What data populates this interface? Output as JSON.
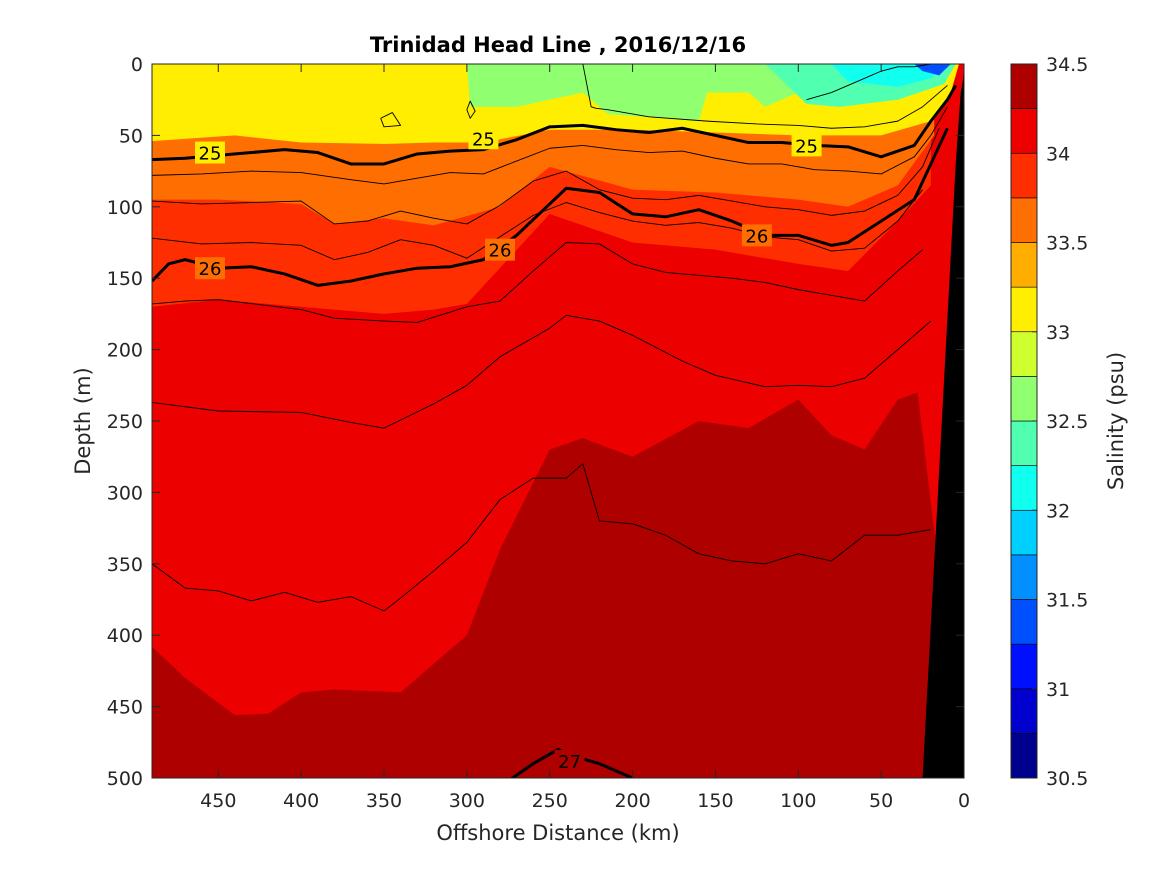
{
  "chart_data": {
    "type": "heatmap",
    "title": "Trinidad Head Line , 2016/12/16",
    "xlabel": "Offshore Distance (km)",
    "ylabel": "Depth (m)",
    "colorbar_label": "Salinity (psu)",
    "xlim": [
      490,
      0
    ],
    "ylim": [
      0,
      500
    ],
    "x_reversed": true,
    "y_reversed": true,
    "x_ticks": [
      450,
      400,
      350,
      300,
      250,
      200,
      150,
      100,
      50,
      0
    ],
    "y_ticks": [
      0,
      50,
      100,
      150,
      200,
      250,
      300,
      350,
      400,
      450,
      500
    ],
    "colorbar": {
      "range": [
        30.5,
        34.5
      ],
      "ticks": [
        30.5,
        31,
        31.5,
        32,
        32.5,
        33,
        33.5,
        34,
        34.5
      ],
      "levels": [
        30.5,
        30.75,
        31,
        31.25,
        31.5,
        31.75,
        32,
        32.25,
        32.5,
        32.75,
        33,
        33.25,
        33.5,
        33.75,
        34,
        34.25,
        34.5
      ],
      "colors": [
        "#00008f",
        "#0000cf",
        "#0010ff",
        "#0050ff",
        "#0090ff",
        "#00d0ff",
        "#10ffef",
        "#50ffaf",
        "#90ff70",
        "#d0ff30",
        "#ffee00",
        "#ffae00",
        "#ff6e00",
        "#ff2e00",
        "#ed0000",
        "#af0000"
      ]
    },
    "salinity_bands": [
      {
        "value": 32.0,
        "depth": [
          [
            10,
            0
          ],
          [
            15,
            5
          ],
          [
            25,
            8
          ],
          [
            30,
            0
          ]
        ]
      },
      {
        "value": 32.5,
        "depth": [
          [
            60,
            0
          ],
          [
            60,
            15
          ],
          [
            80,
            30
          ],
          [
            100,
            20
          ],
          [
            120,
            30
          ],
          [
            130,
            20
          ],
          [
            180,
            20
          ],
          [
            190,
            0
          ]
        ]
      },
      {
        "value": 33.0,
        "depth": [
          [
            490,
            54
          ],
          [
            440,
            50
          ],
          [
            400,
            55
          ],
          [
            350,
            56
          ],
          [
            320,
            55
          ],
          [
            290,
            55
          ],
          [
            250,
            46
          ],
          [
            200,
            46
          ],
          [
            150,
            48
          ],
          [
            100,
            50
          ],
          [
            50,
            50
          ],
          [
            20,
            40
          ],
          [
            8,
            20
          ],
          [
            3,
            0
          ]
        ]
      },
      {
        "value": 33.5,
        "depth": [
          [
            490,
            95
          ],
          [
            450,
            95
          ],
          [
            400,
            98
          ],
          [
            380,
            112
          ],
          [
            350,
            108
          ],
          [
            320,
            113
          ],
          [
            280,
            100
          ],
          [
            250,
            72
          ],
          [
            200,
            88
          ],
          [
            150,
            90
          ],
          [
            100,
            95
          ],
          [
            70,
            100
          ],
          [
            40,
            85
          ],
          [
            18,
            50
          ]
        ]
      },
      {
        "value": 34.0,
        "depth": [
          [
            490,
            170
          ],
          [
            450,
            165
          ],
          [
            400,
            170
          ],
          [
            350,
            175
          ],
          [
            320,
            172
          ],
          [
            300,
            168
          ],
          [
            250,
            105
          ],
          [
            200,
            125
          ],
          [
            150,
            130
          ],
          [
            100,
            140
          ],
          [
            70,
            145
          ],
          [
            40,
            110
          ],
          [
            20,
            85
          ]
        ]
      },
      {
        "value": 34.25,
        "depth": [
          [
            490,
            408
          ],
          [
            470,
            430
          ],
          [
            440,
            456
          ],
          [
            420,
            455
          ],
          [
            400,
            440
          ],
          [
            380,
            438
          ],
          [
            340,
            440
          ],
          [
            300,
            400
          ],
          [
            280,
            340
          ],
          [
            250,
            270
          ],
          [
            230,
            262
          ],
          [
            200,
            275
          ],
          [
            160,
            250
          ],
          [
            130,
            255
          ],
          [
            100,
            235
          ],
          [
            80,
            260
          ],
          [
            60,
            270
          ],
          [
            40,
            235
          ],
          [
            28,
            230
          ]
        ]
      }
    ],
    "sigma_t_contours": [
      {
        "label": "25",
        "x": [
          490,
          470,
          450,
          430,
          410,
          390,
          370,
          350,
          330,
          310,
          290,
          270,
          250,
          230,
          210,
          190,
          170,
          150,
          130,
          110,
          90,
          70,
          50,
          30,
          20,
          10,
          5
        ],
        "depth": [
          67,
          66,
          64,
          62,
          60,
          62,
          70,
          70,
          63,
          61,
          60,
          53,
          44,
          43,
          46,
          48,
          45,
          50,
          55,
          55,
          57,
          58,
          65,
          57,
          40,
          25,
          15
        ]
      },
      {
        "label": "26",
        "x": [
          490,
          480,
          470,
          450,
          430,
          410,
          390,
          370,
          350,
          330,
          310,
          290,
          270,
          250,
          240,
          220,
          200,
          180,
          160,
          140,
          120,
          100,
          80,
          70,
          50,
          30,
          20,
          10
        ],
        "depth": [
          152,
          140,
          137,
          143,
          142,
          147,
          155,
          152,
          147,
          143,
          142,
          137,
          120,
          98,
          87,
          90,
          105,
          107,
          102,
          110,
          120,
          120,
          127,
          125,
          110,
          95,
          70,
          45
        ]
      },
      {
        "label": "27",
        "x": [
          275,
          260,
          245,
          235,
          220,
          210,
          200
        ],
        "depth": [
          502,
          490,
          480,
          485,
          490,
          495,
          500
        ]
      }
    ],
    "thin_contours": [
      {
        "x": [
          490,
          460,
          430,
          400,
          370,
          350,
          330,
          310,
          290,
          270,
          250,
          230,
          210,
          190,
          170,
          150,
          130,
          110,
          90,
          70,
          50,
          30,
          20,
          10
        ],
        "depth": [
          78,
          77,
          75,
          76,
          81,
          84,
          80,
          76,
          77,
          68,
          59,
          57,
          60,
          62,
          61,
          66,
          70,
          70,
          74,
          75,
          77,
          65,
          50,
          30
        ]
      },
      {
        "x": [
          490,
          460,
          430,
          400,
          380,
          360,
          340,
          320,
          300,
          280,
          260,
          240,
          220,
          200,
          180,
          160,
          140,
          120,
          100,
          80,
          60,
          40,
          25,
          15
        ],
        "depth": [
          96,
          98,
          97,
          96,
          112,
          110,
          103,
          108,
          112,
          99,
          82,
          75,
          88,
          94,
          95,
          92,
          96,
          100,
          102,
          106,
          103,
          92,
          72,
          45
        ]
      },
      {
        "x": [
          490,
          460,
          430,
          400,
          380,
          360,
          340,
          320,
          300,
          280,
          260,
          240,
          220,
          200,
          180,
          160,
          140,
          120,
          100,
          80,
          60,
          40,
          25
        ],
        "depth": [
          122,
          126,
          125,
          127,
          137,
          132,
          123,
          127,
          136,
          121,
          106,
          97,
          104,
          110,
          113,
          111,
          115,
          121,
          123,
          131,
          129,
          110,
          88
        ]
      },
      {
        "x": [
          490,
          470,
          450,
          400,
          380,
          350,
          330,
          300,
          280,
          260,
          240,
          220,
          200,
          180,
          160,
          140,
          120,
          100,
          80,
          60,
          40,
          25
        ],
        "depth": [
          168,
          166,
          165,
          172,
          178,
          180,
          181,
          170,
          166,
          145,
          125,
          126,
          140,
          146,
          148,
          150,
          153,
          158,
          162,
          166,
          145,
          130
        ]
      },
      {
        "x": [
          490,
          450,
          400,
          370,
          350,
          320,
          300,
          280,
          250,
          240,
          220,
          200,
          170,
          150,
          120,
          100,
          80,
          60,
          40,
          20
        ],
        "depth": [
          237,
          243,
          244,
          251,
          255,
          238,
          225,
          205,
          185,
          176,
          180,
          190,
          208,
          218,
          226,
          225,
          226,
          220,
          200,
          180
        ]
      },
      {
        "x": [
          490,
          470,
          450,
          430,
          410,
          390,
          370,
          350,
          340,
          320,
          300,
          280,
          260,
          240,
          230,
          220,
          200,
          180,
          160,
          140,
          120,
          100,
          80,
          60,
          40,
          20
        ],
        "depth": [
          350,
          367,
          369,
          376,
          370,
          377,
          373,
          383,
          374,
          355,
          335,
          305,
          290,
          290,
          280,
          320,
          322,
          330,
          343,
          348,
          350,
          343,
          348,
          330,
          330,
          326
        ]
      },
      {
        "x": [
          490,
          510
        ],
        "depth": [
          0,
          0
        ]
      }
    ],
    "small_contours": [
      {
        "x": [
          352,
          345,
          340,
          350,
          352
        ],
        "depth": [
          38,
          34,
          43,
          44,
          38
        ]
      },
      {
        "x": [
          300,
          298,
          295,
          298,
          300
        ],
        "depth": [
          32,
          26,
          33,
          38,
          32
        ]
      },
      {
        "x": [
          230,
          225,
          222,
          215,
          190,
          155,
          125,
          100,
          80,
          60,
          40,
          25,
          10
        ],
        "depth": [
          0,
          30,
          31,
          32,
          37,
          40,
          42,
          43,
          45,
          44,
          40,
          30,
          15
        ]
      },
      {
        "x": [
          95,
          80,
          70,
          60,
          50,
          40,
          30,
          20,
          10
        ],
        "depth": [
          25,
          20,
          15,
          10,
          5,
          2,
          2,
          0,
          0
        ]
      }
    ],
    "bathymetry": {
      "color": "#000000",
      "x_at_surface": 0,
      "x_at_500": 25
    }
  }
}
